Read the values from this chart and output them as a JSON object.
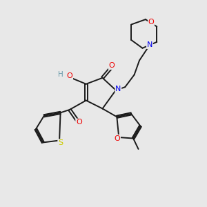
{
  "background_color": "#e8e8e8",
  "atom_colors": {
    "C": "#1a1a1a",
    "N": "#0000ee",
    "O": "#ee0000",
    "S": "#cccc00",
    "H": "#6699aa"
  },
  "figsize": [
    3.0,
    3.0
  ],
  "dpi": 100
}
